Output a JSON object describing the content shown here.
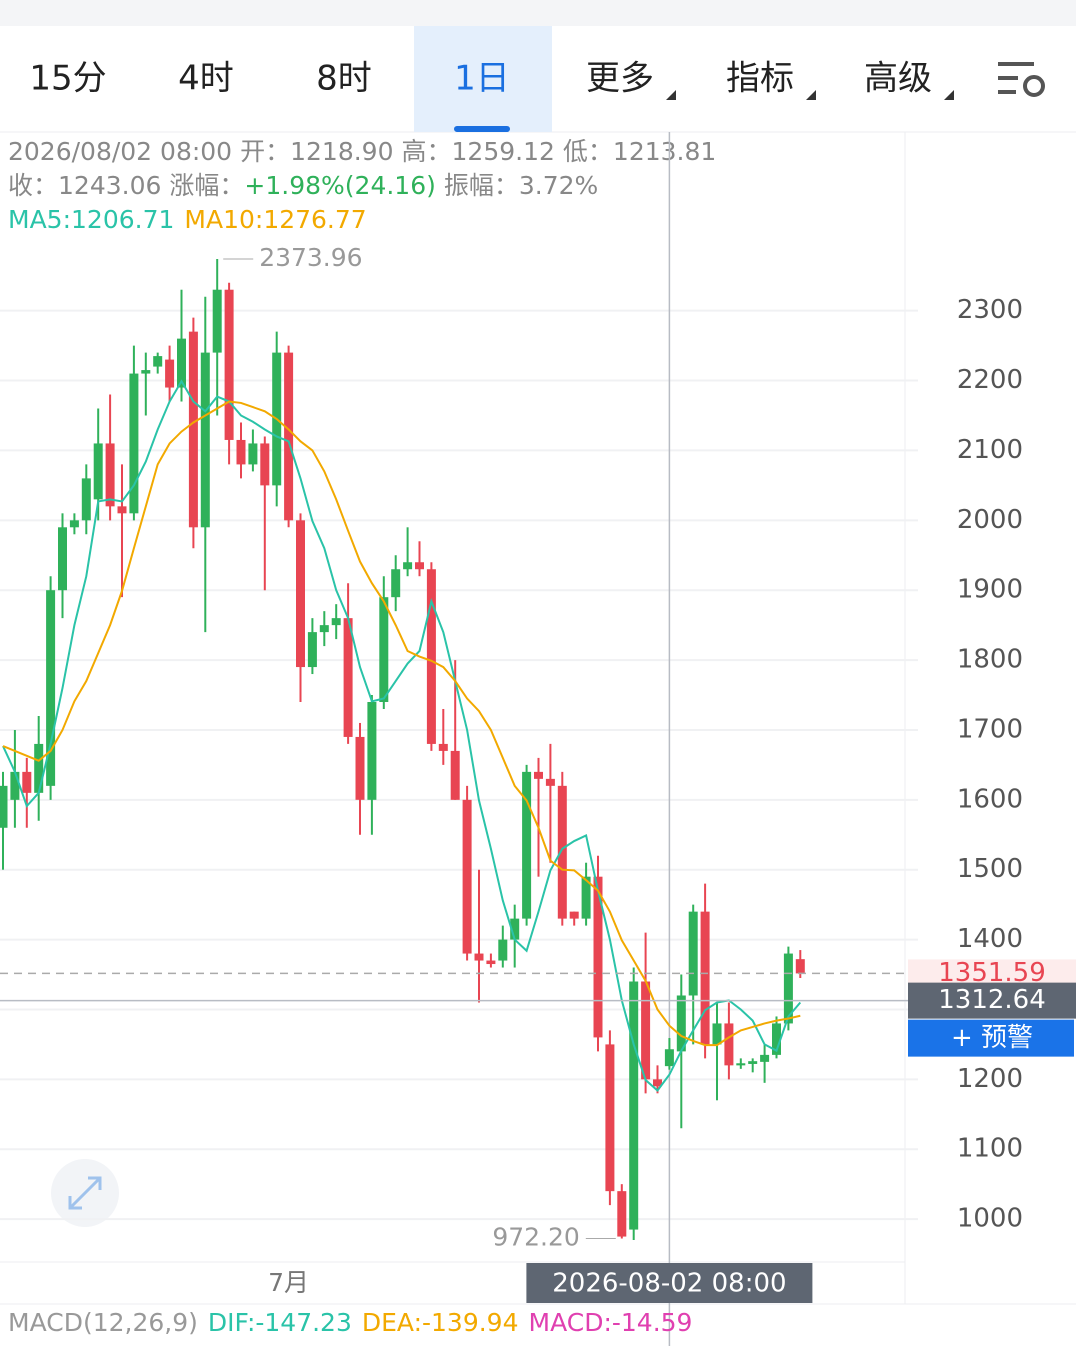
{
  "tabs": [
    {
      "label": "15分"
    },
    {
      "label": "4时"
    },
    {
      "label": "8时"
    },
    {
      "label": "1日",
      "selected": true
    },
    {
      "label": "更多",
      "menu": true
    },
    {
      "label": "指标",
      "menu": true
    },
    {
      "label": "高级",
      "menu": true
    }
  ],
  "info": {
    "date": "2026/08/02 08:00",
    "rows": [
      [
        {
          "label": "开：",
          "value": "1218.90"
        },
        {
          "label": "高：",
          "value": "1259.12"
        },
        {
          "label": "低：",
          "value": "1213.81"
        }
      ],
      [
        {
          "label": "收：",
          "value": "1243.06"
        },
        {
          "label": "涨幅：",
          "value": "+1.98%(24.16)",
          "color": "#2fb15a"
        },
        {
          "label": "振幅：",
          "value": "3.72%"
        }
      ]
    ]
  },
  "macd": [
    {
      "text": "MACD(12,26,9)",
      "color": "#999999"
    },
    {
      "text": "DIF:-147.23",
      "color": "#2ac3a8"
    },
    {
      "text": "DEA:-139.94",
      "color": "#f2a900"
    },
    {
      "text": "MACD:-14.59",
      "color": "#e040b0"
    }
  ],
  "alert_button": "+ 预警",
  "chart_data": {
    "type": "candlestick",
    "up_color": "#2fb15a",
    "down_color": "#e84552",
    "categories": [
      null,
      null,
      null,
      null,
      null,
      null,
      null,
      null,
      null,
      null,
      null,
      null,
      null,
      null,
      null,
      null,
      null,
      null,
      null,
      null,
      null,
      null,
      null,
      null,
      "7月",
      null,
      null,
      null,
      null,
      null,
      null,
      null,
      null,
      null,
      null,
      null,
      null,
      null,
      null,
      null,
      null,
      null,
      null,
      null,
      null,
      null,
      null,
      null,
      null,
      null,
      null,
      null,
      null,
      null,
      null,
      null,
      "2026-08-02 08:00",
      null,
      null,
      null,
      null,
      null,
      null,
      null,
      null,
      null,
      null,
      null
    ],
    "ohlc": [
      [
        1560,
        1640,
        1500,
        1620
      ],
      [
        1600,
        1700,
        1560,
        1640
      ],
      [
        1640,
        1660,
        1560,
        1610
      ],
      [
        1610,
        1720,
        1570,
        1680
      ],
      [
        1620,
        1920,
        1600,
        1900
      ],
      [
        1900,
        2010,
        1860,
        1990
      ],
      [
        1990,
        2010,
        1980,
        2000
      ],
      [
        2000,
        2080,
        1980,
        2060
      ],
      [
        2030,
        2160,
        2000,
        2110
      ],
      [
        2110,
        2180,
        2000,
        2020
      ],
      [
        2020,
        2080,
        1890,
        2010
      ],
      [
        2010,
        2250,
        2000,
        2210
      ],
      [
        2210,
        2240,
        2150,
        2215
      ],
      [
        2220,
        2240,
        2210,
        2235
      ],
      [
        2230,
        2250,
        2170,
        2190
      ],
      [
        2190,
        2330,
        2170,
        2260
      ],
      [
        2270,
        2290,
        1960,
        1990
      ],
      [
        1990,
        2320,
        1840,
        2240
      ],
      [
        2240,
        2373.96,
        2150,
        2330
      ],
      [
        2330,
        2340,
        2080,
        2115
      ],
      [
        2115,
        2140,
        2060,
        2080
      ],
      [
        2080,
        2130,
        2070,
        2110
      ],
      [
        2110,
        2120,
        1900,
        2050
      ],
      [
        2050,
        2270,
        2020,
        2240
      ],
      [
        2240,
        2250,
        1990,
        2000
      ],
      [
        2000,
        2010,
        1740,
        1790
      ],
      [
        1790,
        1860,
        1780,
        1840
      ],
      [
        1840,
        1870,
        1820,
        1850
      ],
      [
        1850,
        1880,
        1830,
        1860
      ],
      [
        1860,
        1910,
        1680,
        1690
      ],
      [
        1690,
        1710,
        1550,
        1600
      ],
      [
        1600,
        1750,
        1550,
        1740
      ],
      [
        1740,
        1920,
        1730,
        1890
      ],
      [
        1890,
        1950,
        1870,
        1930
      ],
      [
        1930,
        1990,
        1920,
        1940
      ],
      [
        1940,
        1970,
        1920,
        1930
      ],
      [
        1930,
        1940,
        1670,
        1680
      ],
      [
        1680,
        1730,
        1650,
        1670
      ],
      [
        1670,
        1800,
        1600,
        1600
      ],
      [
        1600,
        1620,
        1370,
        1380
      ],
      [
        1380,
        1500,
        1310,
        1370
      ],
      [
        1370,
        1380,
        1360,
        1365
      ],
      [
        1370,
        1420,
        1360,
        1400
      ],
      [
        1400,
        1450,
        1360,
        1430
      ],
      [
        1430,
        1650,
        1420,
        1640
      ],
      [
        1640,
        1660,
        1490,
        1630
      ],
      [
        1630,
        1680,
        1510,
        1620
      ],
      [
        1620,
        1640,
        1420,
        1430
      ],
      [
        1440,
        1440,
        1420,
        1430
      ],
      [
        1430,
        1510,
        1420,
        1490
      ],
      [
        1490,
        1520,
        1240,
        1260
      ],
      [
        1250,
        1270,
        1020,
        1040
      ],
      [
        1040,
        1050,
        972.2,
        975
      ],
      [
        985,
        1360,
        970,
        1340
      ],
      [
        1340,
        1410,
        1180,
        1200
      ],
      [
        1200,
        1220,
        1180,
        1190
      ],
      [
        1218.9,
        1259.12,
        1213.81,
        1243.06
      ],
      [
        1240,
        1350,
        1130,
        1320
      ],
      [
        1320,
        1450,
        1250,
        1440
      ],
      [
        1440,
        1480,
        1230,
        1250
      ],
      [
        1250,
        1310,
        1170,
        1280
      ],
      [
        1280,
        1310,
        1200,
        1220
      ],
      [
        1220,
        1230,
        1215,
        1223
      ],
      [
        1222,
        1230,
        1210,
        1226
      ],
      [
        1225,
        1250,
        1195,
        1235
      ],
      [
        1235,
        1290,
        1230,
        1280
      ],
      [
        1280,
        1390,
        1270,
        1380
      ],
      [
        1372,
        1385,
        1345,
        1351.59
      ]
    ],
    "series": [
      {
        "name": "MA5:",
        "color": "#2ac3a8",
        "values": [
          1677,
          1640,
          1591,
          1610,
          1680,
          1760,
          1850,
          1920,
          2027,
          2030,
          2027,
          2050,
          2084,
          2130,
          2170,
          2199,
          2170,
          2156,
          2177,
          2170,
          2150,
          2141,
          2130,
          2120,
          2113,
          2060,
          1999,
          1960,
          1900,
          1860,
          1790,
          1741,
          1745,
          1770,
          1795,
          1813,
          1884,
          1840,
          1770,
          1700,
          1599,
          1530,
          1456,
          1400,
          1384,
          1440,
          1499,
          1530,
          1541,
          1549,
          1470,
          1400,
          1313,
          1250,
          1199,
          1184,
          1206.71,
          1241,
          1270,
          1299,
          1310,
          1313,
          1300,
          1284,
          1250,
          1241,
          1290,
          1310
        ]
      },
      {
        "name": "MA10:",
        "color": "#f2a900",
        "values": [
          1677,
          1670,
          1663,
          1656,
          1670,
          1700,
          1741,
          1770,
          1810,
          1850,
          1899,
          1960,
          2020,
          2080,
          2110,
          2127,
          2140,
          2150,
          2160,
          2170,
          2168,
          2162,
          2156,
          2145,
          2130,
          2113,
          2100,
          2070,
          2030,
          1985,
          1941,
          1910,
          1884,
          1850,
          1813,
          1805,
          1799,
          1790,
          1770,
          1745,
          1727,
          1700,
          1660,
          1620,
          1599,
          1560,
          1513,
          1500,
          1499,
          1485,
          1470,
          1440,
          1399,
          1370,
          1341,
          1300,
          1276.77,
          1262,
          1255,
          1249,
          1249,
          1260,
          1270,
          1275,
          1280,
          1284,
          1287,
          1291
        ]
      }
    ],
    "ylim": [
      938.6,
      2555.7
    ],
    "yticks": [
      1000,
      1100,
      1200,
      1300,
      1400,
      1500,
      1600,
      1700,
      1800,
      1900,
      2000,
      2100,
      2200,
      2300
    ],
    "grid": true,
    "max_label": {
      "value": 2373.96,
      "label": "2373.96"
    },
    "min_label": {
      "value": 972.2,
      "label": "972.20"
    },
    "last_price": 1351.59,
    "crosshair": {
      "x": "2026-08-02 08:00",
      "y": 1312.64
    }
  }
}
